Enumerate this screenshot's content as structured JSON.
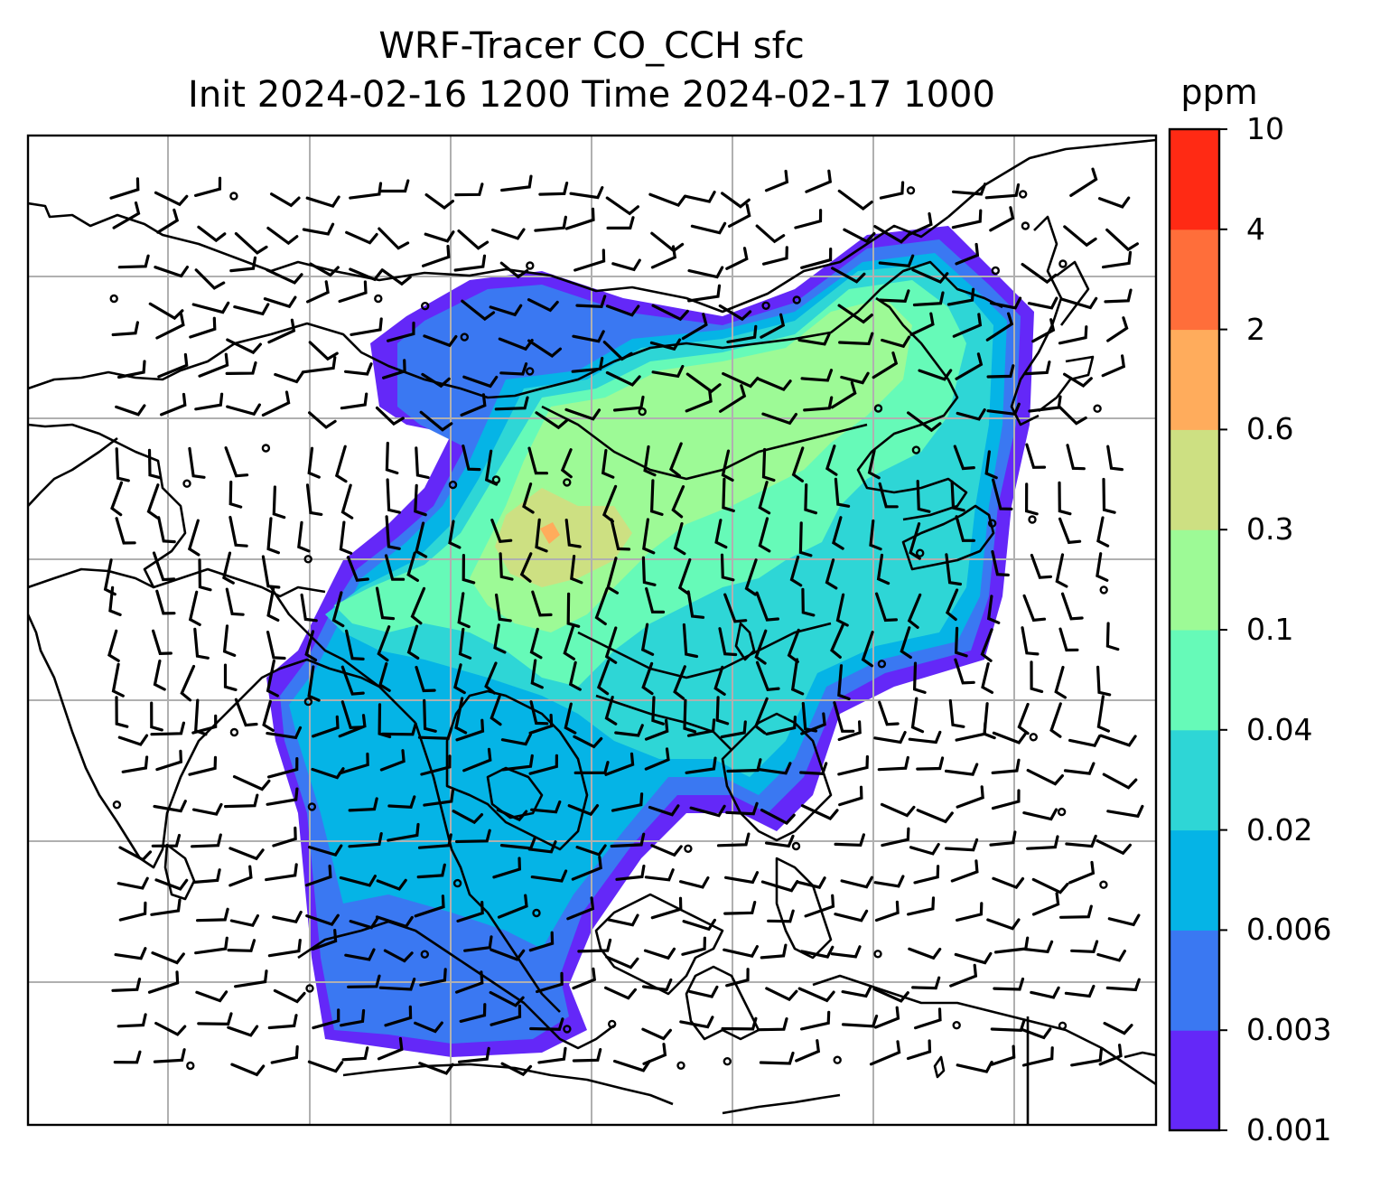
{
  "title_line1": "WRF-Tracer CO_CCH sfc",
  "title_line2": "Init 2024-02-16 1200 Time 2024-02-17 1000",
  "colorbar": {
    "unit": "ppm",
    "levels": [
      "0.001",
      "0.003",
      "0.006",
      "0.02",
      "0.04",
      "0.1",
      "0.3",
      "0.6",
      "2",
      "4",
      "10"
    ],
    "colors": [
      "#6428f8",
      "#3a78f2",
      "#05b4e6",
      "#2ed6d6",
      "#66fab8",
      "#9dfa96",
      "#cde082",
      "#ffac5c",
      "#ff6e3a",
      "#ff2a14"
    ]
  },
  "map": {
    "gridline_color": "#b0b0b0",
    "coastline_color": "#000000",
    "station_marker": "open circle",
    "wind_symbol": "wind barbs"
  }
}
